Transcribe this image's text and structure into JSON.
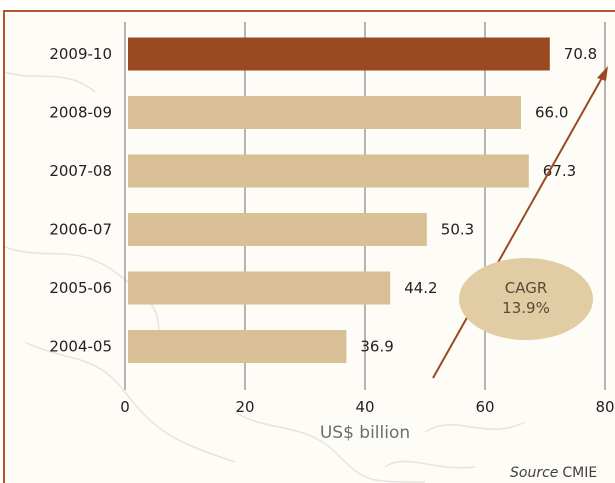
{
  "chart_data": {
    "type": "bar",
    "orientation": "horizontal",
    "categories": [
      "2009-10",
      "2008-09",
      "2007-08",
      "2006-07",
      "2005-06",
      "2004-05"
    ],
    "values": [
      70.8,
      66.0,
      67.3,
      50.3,
      44.2,
      36.9
    ],
    "value_labels": [
      "70.8",
      "66.0",
      "67.3",
      "50.3",
      "44.2",
      "36.9"
    ],
    "highlight_index": 0,
    "xlim": [
      0,
      80
    ],
    "x_ticks": [
      0,
      20,
      40,
      60,
      80
    ],
    "x_tick_labels": [
      "0",
      "20",
      "40",
      "60",
      "80"
    ],
    "xlabel": "US$ billion",
    "grid": "vertical",
    "annotation": {
      "line1": "CAGR",
      "line2": "13.9%"
    },
    "source_label": "Source",
    "source_value": "CMIE",
    "colors": {
      "bar": "#d9bf95",
      "highlight_bar": "#9a4a21",
      "frame": "#b2572d",
      "arrow": "#9a4a21",
      "ellipse": "#e1cca3",
      "grid": "#6d6e71"
    }
  }
}
